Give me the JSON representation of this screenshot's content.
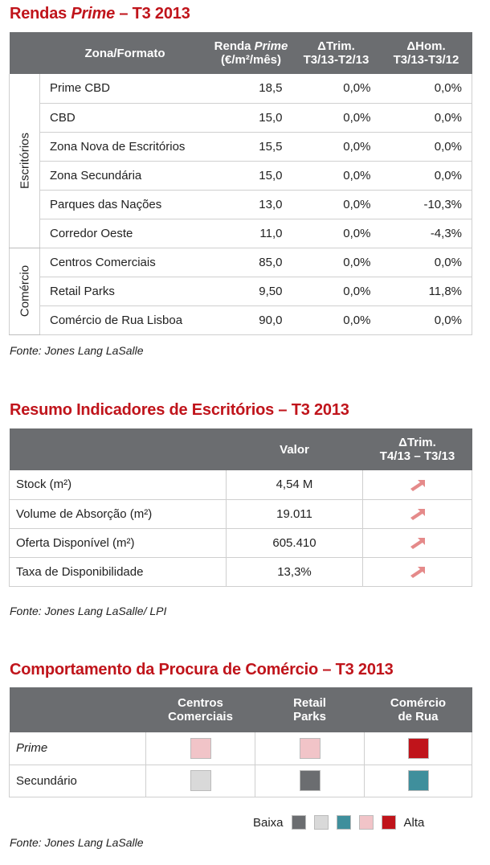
{
  "rents": {
    "title_pre": "Rendas ",
    "title_em": "Prime",
    "title_post": " – T3 2013",
    "headers": {
      "zone": "Zona/Formato",
      "rent_l1_pre": "Renda ",
      "rent_l1_em": "Prime",
      "rent_l2": "(€/m²/mês)",
      "qoq_l1": "ΔTrim.",
      "qoq_l2": "T3/13-T2/13",
      "yoy_l1": "ΔHom.",
      "yoy_l2": "T3/13-T3/12"
    },
    "groups": [
      "Escritórios",
      "Comércio"
    ],
    "rows": [
      {
        "label": "Prime CBD",
        "rent": "18,5",
        "qoq": "0,0%",
        "yoy": "0,0%"
      },
      {
        "label": "CBD",
        "rent": "15,0",
        "qoq": "0,0%",
        "yoy": "0,0%"
      },
      {
        "label": "Zona Nova de Escritórios",
        "rent": "15,5",
        "qoq": "0,0%",
        "yoy": "0,0%"
      },
      {
        "label": "Zona Secundária",
        "rent": "15,0",
        "qoq": "0,0%",
        "yoy": "0,0%"
      },
      {
        "label": "Parques das Nações",
        "rent": "13,0",
        "qoq": "0,0%",
        "yoy": "-10,3%"
      },
      {
        "label": "Corredor Oeste",
        "rent": "11,0",
        "qoq": "0,0%",
        "yoy": "-4,3%"
      },
      {
        "label": "Centros Comerciais",
        "rent": "85,0",
        "qoq": "0,0%",
        "yoy": "0,0%"
      },
      {
        "label": "Retail Parks",
        "rent": "9,50",
        "qoq": "0,0%",
        "yoy": "11,8%"
      },
      {
        "label": "Comércio de Rua Lisboa",
        "rent": "90,0",
        "qoq": "0,0%",
        "yoy": "0,0%"
      }
    ],
    "source": "Fonte: Jones Lang LaSalle"
  },
  "offices": {
    "title": "Resumo Indicadores de Escritórios – T3 2013",
    "headers": {
      "value": "Valor",
      "delta_l1": "ΔTrim.",
      "delta_l2": "T4/13 – T3/13"
    },
    "arrow_icon": "arrow-up-right-icon",
    "arrow_color": "#e58a8a",
    "rows": [
      {
        "label": "Stock (m²)",
        "value": "4,54 M"
      },
      {
        "label": "Volume de Absorção (m²)",
        "value": "19.011"
      },
      {
        "label": "Oferta Disponível (m²)",
        "value": "605.410"
      },
      {
        "label": "Taxa de Disponibilidade",
        "value": "13,3%"
      }
    ],
    "source": "Fonte: Jones Lang LaSalle/ LPI"
  },
  "retail": {
    "title": "Comportamento da Procura de Comércio – T3 2013",
    "headers": {
      "col1_l1": "Centros",
      "col1_l2": "Comerciais",
      "col2_l1": "Retail",
      "col2_l2": "Parks",
      "col3_l1": "Comércio",
      "col3_l2": "de Rua"
    },
    "rows": [
      {
        "label": "Prime",
        "colors": [
          "#f1c4c8",
          "#f1c4c8",
          "#c0141b"
        ]
      },
      {
        "label": "Secundário",
        "colors": [
          "#d9d9d9",
          "#6b6d70",
          "#3f8f9c"
        ]
      }
    ],
    "legend": {
      "low": "Baixa",
      "high": "Alta",
      "colors": [
        "#6b6d70",
        "#d9d9d9",
        "#3f8f9c",
        "#f1c4c8",
        "#c0141b"
      ]
    },
    "source": "Fonte: Jones Lang LaSalle"
  }
}
